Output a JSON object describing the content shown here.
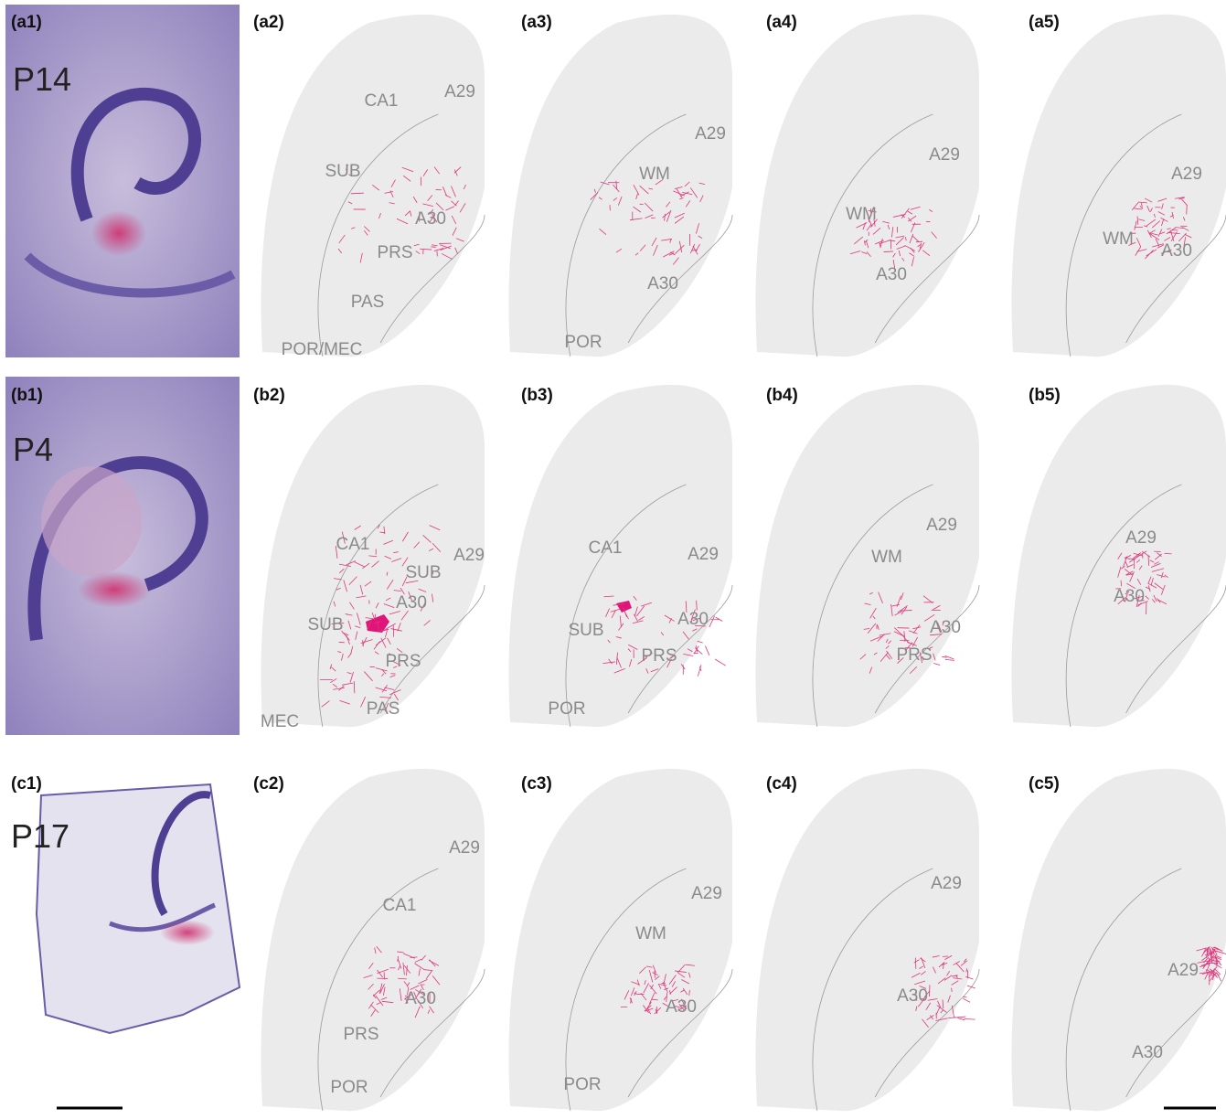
{
  "rows": [
    {
      "panels": [
        {
          "label": "(a1)",
          "age": "P14"
        },
        {
          "label": "(a2)",
          "regions": [
            "CA1",
            "A29",
            "SUB",
            "A30",
            "PRS",
            "PAS",
            "POR/MEC"
          ]
        },
        {
          "label": "(a3)",
          "regions": [
            "A29",
            "WM",
            "A30",
            "POR"
          ]
        },
        {
          "label": "(a4)",
          "regions": [
            "A29",
            "WM",
            "A30"
          ]
        },
        {
          "label": "(a5)",
          "regions": [
            "A29",
            "WM",
            "A30"
          ]
        }
      ]
    },
    {
      "panels": [
        {
          "label": "(b1)",
          "age": "P4"
        },
        {
          "label": "(b2)",
          "regions": [
            "CA1",
            "A29",
            "SUB",
            "A30",
            "SUB",
            "PRS",
            "PAS",
            "MEC"
          ]
        },
        {
          "label": "(b3)",
          "regions": [
            "CA1",
            "A29",
            "A30",
            "SUB",
            "PRS",
            "POR"
          ]
        },
        {
          "label": "(b4)",
          "regions": [
            "A29",
            "WM",
            "A30",
            "PRS"
          ]
        },
        {
          "label": "(b5)",
          "regions": [
            "A29",
            "A30"
          ]
        }
      ]
    },
    {
      "panels": [
        {
          "label": "(c1)",
          "age": "P17"
        },
        {
          "label": "(c2)",
          "regions": [
            "A29",
            "CA1",
            "A30",
            "PRS",
            "POR"
          ]
        },
        {
          "label": "(c3)",
          "regions": [
            "A29",
            "WM",
            "A30",
            "POR"
          ]
        },
        {
          "label": "(c4)",
          "regions": [
            "A29",
            "A30"
          ]
        },
        {
          "label": "(c5)",
          "regions": [
            "A29",
            "A30"
          ]
        }
      ]
    }
  ]
}
